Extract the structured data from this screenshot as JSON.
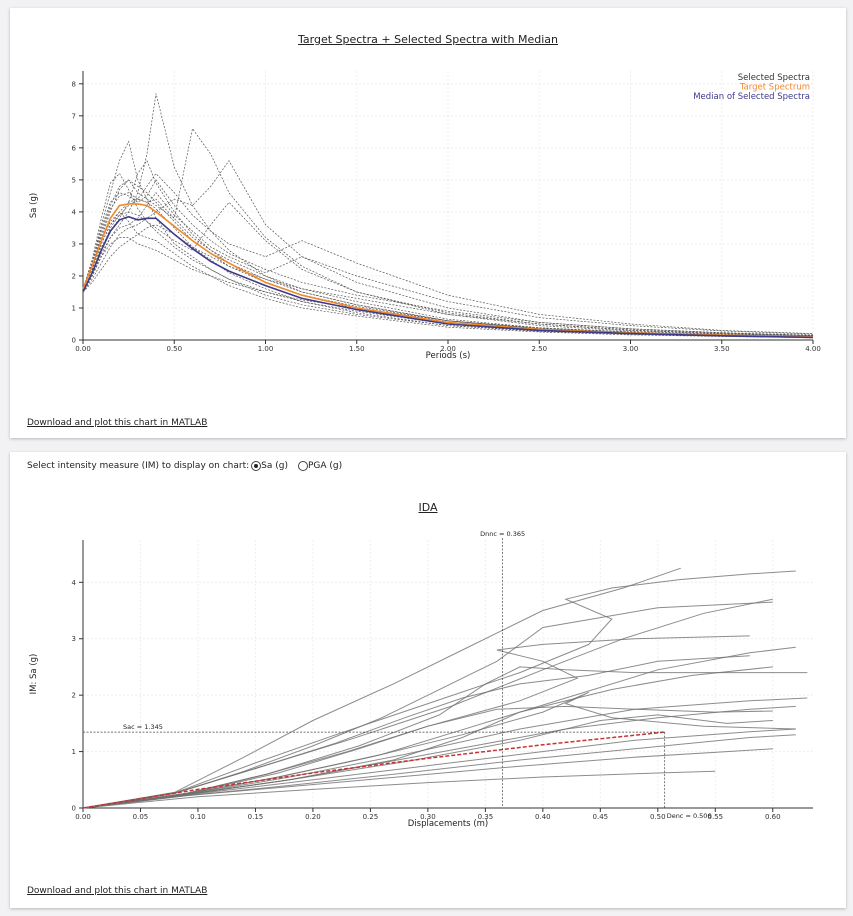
{
  "panel1": {
    "link_label": "Download and plot this chart in MATLAB"
  },
  "panel2": {
    "im_prompt": "Select intensity measure (IM) to display on chart:",
    "im_options": [
      {
        "label": "Sa (g)",
        "selected": true
      },
      {
        "label": "PGA (g)",
        "selected": false
      }
    ],
    "link_label": "Download and plot this chart in MATLAB"
  },
  "chart_data": [
    {
      "type": "line",
      "title": "Target Spectra + Selected Spectra with Median",
      "xlabel": "Periods (s)",
      "ylabel": "Sa (g)",
      "xlim": [
        0,
        4
      ],
      "ylim": [
        0,
        8.4
      ],
      "xticks": [
        "0.00",
        "0.50",
        "1.00",
        "1.50",
        "2.00",
        "2.50",
        "3.00",
        "3.50",
        "4.00"
      ],
      "yticks": [
        "0",
        "1",
        "2",
        "3",
        "4",
        "5",
        "6",
        "7",
        "8"
      ],
      "grid": true,
      "legend_position": "top-right",
      "x": [
        0,
        0.05,
        0.1,
        0.15,
        0.2,
        0.25,
        0.3,
        0.35,
        0.4,
        0.5,
        0.6,
        0.7,
        0.8,
        1.0,
        1.2,
        1.5,
        2.0,
        2.5,
        3.0,
        3.5,
        4.0
      ],
      "series": [
        {
          "name": "Target Spectrum",
          "color": "#f0882a",
          "values": [
            1.6,
            2.3,
            3.1,
            3.8,
            4.2,
            4.25,
            4.25,
            4.2,
            4.0,
            3.55,
            3.1,
            2.7,
            2.4,
            1.8,
            1.4,
            1.0,
            0.55,
            0.33,
            0.22,
            0.15,
            0.1
          ]
        },
        {
          "name": "Median of Selected Spectra",
          "color": "#3d3a8a",
          "values": [
            1.5,
            2.1,
            2.8,
            3.4,
            3.75,
            3.85,
            3.75,
            3.8,
            3.8,
            3.3,
            2.85,
            2.45,
            2.15,
            1.7,
            1.3,
            0.95,
            0.5,
            0.3,
            0.2,
            0.13,
            0.08
          ]
        },
        {
          "name": "Selected Spectra",
          "color": "#555555",
          "dashed": true,
          "records": [
            [
              1.6,
              2.4,
              3.6,
              4.6,
              5.6,
              6.2,
              5.0,
              4.4,
              3.8,
              3.0,
              2.6,
              2.2,
              1.9,
              1.4,
              1.1,
              0.8,
              0.45,
              0.27,
              0.18,
              0.12,
              0.08
            ],
            [
              1.5,
              2.0,
              2.6,
              3.2,
              3.6,
              4.0,
              4.6,
              5.8,
              7.7,
              5.4,
              4.2,
              3.4,
              2.8,
              2.0,
              1.5,
              1.1,
              0.6,
              0.35,
              0.22,
              0.15,
              0.1
            ],
            [
              1.6,
              2.3,
              3.4,
              4.2,
              4.8,
              5.0,
              4.6,
              4.4,
              4.2,
              3.8,
              6.6,
              5.8,
              4.6,
              3.2,
              2.3,
              1.5,
              0.8,
              0.45,
              0.28,
              0.18,
              0.12
            ],
            [
              1.5,
              1.9,
              2.4,
              2.9,
              3.3,
              3.5,
              3.6,
              3.8,
              4.0,
              4.4,
              4.2,
              4.8,
              5.6,
              3.6,
              2.6,
              1.8,
              1.0,
              0.55,
              0.35,
              0.22,
              0.14
            ],
            [
              1.6,
              2.2,
              3.0,
              3.6,
              3.9,
              4.2,
              4.4,
              4.8,
              5.2,
              4.6,
              3.9,
              3.4,
              3.0,
              2.6,
              3.1,
              2.4,
              1.4,
              0.8,
              0.5,
              0.3,
              0.2
            ],
            [
              1.6,
              2.5,
              3.8,
              4.9,
              5.2,
              4.7,
              4.1,
              3.7,
              3.4,
              2.9,
              2.5,
              2.2,
              1.9,
              1.5,
              1.2,
              0.9,
              0.5,
              0.3,
              0.2,
              0.13,
              0.09
            ],
            [
              1.5,
              2.0,
              2.7,
              3.2,
              3.5,
              3.6,
              3.8,
              4.2,
              4.6,
              3.9,
              3.4,
              2.9,
              2.6,
              2.1,
              2.6,
              2.0,
              1.2,
              0.7,
              0.45,
              0.28,
              0.18
            ],
            [
              1.6,
              2.3,
              3.3,
              4.1,
              4.5,
              4.6,
              4.4,
              4.3,
              4.4,
              3.8,
              3.2,
              2.8,
              2.5,
              2.0,
              1.6,
              1.2,
              0.65,
              0.38,
              0.25,
              0.16,
              0.11
            ],
            [
              1.5,
              2.1,
              2.9,
              3.4,
              3.8,
              4.3,
              5.2,
              5.6,
              4.9,
              4.0,
              3.3,
              2.8,
              2.4,
              1.9,
              1.5,
              1.1,
              0.6,
              0.35,
              0.23,
              0.15,
              0.1
            ],
            [
              1.6,
              2.2,
              3.1,
              3.7,
              4.0,
              3.7,
              3.3,
              3.2,
              3.1,
              2.7,
              2.3,
              2.0,
              1.7,
              1.3,
              1.0,
              0.75,
              0.4,
              0.25,
              0.16,
              0.11,
              0.07
            ],
            [
              1.5,
              1.8,
              2.2,
              2.6,
              2.9,
              3.1,
              3.3,
              3.5,
              3.6,
              3.3,
              2.9,
              2.6,
              2.3,
              1.9,
              1.6,
              1.3,
              0.8,
              0.5,
              0.3,
              0.2,
              0.13
            ],
            [
              1.6,
              2.4,
              3.5,
              4.3,
              4.6,
              4.5,
              4.3,
              4.5,
              5.0,
              4.2,
              3.6,
              3.1,
              2.7,
              2.2,
              1.8,
              1.4,
              0.9,
              0.55,
              0.35,
              0.23,
              0.15
            ],
            [
              1.5,
              2.0,
              2.6,
              3.0,
              3.2,
              3.2,
              3.0,
              2.9,
              2.8,
              2.5,
              2.2,
              2.0,
              1.8,
              1.5,
              1.25,
              1.0,
              0.6,
              0.38,
              0.25,
              0.17,
              0.12
            ],
            [
              1.6,
              2.3,
              3.2,
              4.0,
              4.7,
              5.0,
              4.8,
              4.6,
              4.3,
              3.7,
              3.1,
              2.7,
              2.3,
              1.8,
              1.4,
              1.05,
              0.6,
              0.36,
              0.24,
              0.16,
              0.1
            ],
            [
              1.5,
              2.0,
              2.8,
              3.5,
              3.9,
              4.0,
              3.9,
              3.7,
              3.5,
              3.1,
              2.8,
              3.6,
              4.3,
              3.1,
              2.2,
              1.5,
              0.85,
              0.5,
              0.32,
              0.2,
              0.13
            ],
            [
              1.6,
              2.2,
              3.0,
              3.6,
              4.0,
              4.3,
              4.4,
              4.3,
              4.1,
              3.5,
              2.9,
              2.5,
              2.1,
              1.6,
              1.2,
              0.85,
              0.45,
              0.28,
              0.18,
              0.12,
              0.08
            ]
          ]
        }
      ]
    },
    {
      "type": "line",
      "title": "IDA",
      "xlabel": "Displacements (m)",
      "ylabel": "IM: Sa (g)",
      "xlim": [
        0,
        0.635
      ],
      "ylim": [
        0,
        4.75
      ],
      "xticks": [
        "0.00",
        "0.05",
        "0.10",
        "0.15",
        "0.20",
        "0.25",
        "0.30",
        "0.35",
        "0.40",
        "0.45",
        "0.50",
        "0.55",
        "0.60"
      ],
      "yticks": [
        "0",
        "1",
        "2",
        "3",
        "4"
      ],
      "grid": true,
      "annotations": [
        {
          "text": "Dnnc = 0.365",
          "axis": "x",
          "value": 0.365
        },
        {
          "text": "Denc = 0.506",
          "axis": "x",
          "value": 0.506
        },
        {
          "text": "Sac = 1.345",
          "axis": "y",
          "value": 1.345
        }
      ],
      "median": {
        "color": "#c83232",
        "dashed": true,
        "x": [
          0,
          0.1,
          0.2,
          0.3,
          0.4,
          0.506
        ],
        "y": [
          0,
          0.33,
          0.62,
          0.88,
          1.12,
          1.345
        ]
      },
      "curves": [
        {
          "x": [
            0,
            0.08,
            0.14,
            0.2,
            0.27,
            0.33,
            0.4,
            0.47,
            0.52
          ],
          "y": [
            0,
            0.28,
            0.9,
            1.55,
            2.2,
            2.8,
            3.5,
            3.9,
            4.25
          ]
        },
        {
          "x": [
            0,
            0.08,
            0.15,
            0.22,
            0.3,
            0.38,
            0.44,
            0.46,
            0.42,
            0.46,
            0.52,
            0.58,
            0.62
          ],
          "y": [
            0,
            0.27,
            0.8,
            1.3,
            1.85,
            2.4,
            2.9,
            3.35,
            3.7,
            3.9,
            4.05,
            4.15,
            4.2
          ]
        },
        {
          "x": [
            0,
            0.08,
            0.15,
            0.23,
            0.32,
            0.4,
            0.47,
            0.54,
            0.6
          ],
          "y": [
            0,
            0.27,
            0.7,
            1.2,
            1.8,
            2.45,
            3.0,
            3.45,
            3.7
          ]
        },
        {
          "x": [
            0,
            0.08,
            0.14,
            0.2,
            0.26,
            0.3,
            0.34,
            0.36,
            0.4,
            0.5,
            0.6
          ],
          "y": [
            0,
            0.26,
            0.65,
            1.1,
            1.6,
            2.0,
            2.4,
            2.6,
            3.2,
            3.55,
            3.65
          ]
        },
        {
          "x": [
            0,
            0.09,
            0.16,
            0.23,
            0.3,
            0.38,
            0.43,
            0.4,
            0.36,
            0.4,
            0.48,
            0.58
          ],
          "y": [
            0,
            0.26,
            0.6,
            1.0,
            1.45,
            1.9,
            2.3,
            2.6,
            2.8,
            2.9,
            3.0,
            3.05
          ]
        },
        {
          "x": [
            0,
            0.09,
            0.17,
            0.26,
            0.34,
            0.42,
            0.5,
            0.58,
            0.62
          ],
          "y": [
            0,
            0.25,
            0.55,
            0.95,
            1.45,
            1.95,
            2.45,
            2.75,
            2.85
          ]
        },
        {
          "x": [
            0,
            0.09,
            0.17,
            0.25,
            0.33,
            0.4,
            0.44,
            0.42,
            0.46,
            0.54,
            0.62
          ],
          "y": [
            0,
            0.25,
            0.55,
            0.9,
            1.3,
            1.7,
            2.05,
            1.85,
            1.6,
            1.45,
            1.4
          ]
        },
        {
          "x": [
            0,
            0.09,
            0.16,
            0.24,
            0.31,
            0.35,
            0.38,
            0.42,
            0.48,
            0.56,
            0.63
          ],
          "y": [
            0,
            0.26,
            0.6,
            1.1,
            1.65,
            2.2,
            2.5,
            2.45,
            2.4,
            2.4,
            2.4
          ]
        },
        {
          "x": [
            0,
            0.09,
            0.18,
            0.27,
            0.33,
            0.38,
            0.46,
            0.53,
            0.6
          ],
          "y": [
            0,
            0.24,
            0.5,
            0.85,
            1.25,
            1.7,
            2.1,
            2.35,
            2.5
          ]
        },
        {
          "x": [
            0,
            0.09,
            0.18,
            0.28,
            0.38,
            0.45,
            0.5,
            0.56,
            0.6
          ],
          "y": [
            0,
            0.24,
            0.5,
            0.82,
            1.2,
            1.55,
            1.65,
            1.5,
            1.55
          ]
        },
        {
          "x": [
            0,
            0.09,
            0.18,
            0.28,
            0.38,
            0.48,
            0.58,
            0.62
          ],
          "y": [
            0,
            0.23,
            0.45,
            0.7,
            0.95,
            1.2,
            1.35,
            1.4
          ]
        },
        {
          "x": [
            0,
            0.09,
            0.18,
            0.28,
            0.38,
            0.48,
            0.58,
            0.62
          ],
          "y": [
            0,
            0.22,
            0.4,
            0.62,
            0.85,
            1.05,
            1.25,
            1.3
          ]
        },
        {
          "x": [
            0,
            0.09,
            0.18,
            0.28,
            0.38,
            0.48,
            0.56,
            0.6
          ],
          "y": [
            0,
            0.22,
            0.38,
            0.56,
            0.74,
            0.9,
            1.0,
            1.05
          ]
        },
        {
          "x": [
            0,
            0.1,
            0.2,
            0.3,
            0.4,
            0.5,
            0.55
          ],
          "y": [
            0,
            0.2,
            0.33,
            0.45,
            0.55,
            0.62,
            0.65
          ]
        },
        {
          "x": [
            0,
            0.09,
            0.18,
            0.28,
            0.38,
            0.48,
            0.58,
            0.63
          ],
          "y": [
            0,
            0.24,
            0.55,
            0.95,
            1.4,
            1.75,
            1.9,
            1.95
          ]
        },
        {
          "x": [
            0,
            0.09,
            0.17,
            0.24,
            0.3,
            0.36,
            0.42,
            0.48,
            0.55,
            0.6
          ],
          "y": [
            0,
            0.25,
            0.62,
            1.05,
            1.45,
            1.75,
            1.8,
            1.75,
            1.7,
            1.72
          ]
        },
        {
          "x": [
            0,
            0.08,
            0.15,
            0.22,
            0.28,
            0.33,
            0.38,
            0.44,
            0.5,
            0.58
          ],
          "y": [
            0,
            0.26,
            0.7,
            1.15,
            1.6,
            1.95,
            2.2,
            2.35,
            2.6,
            2.7
          ]
        },
        {
          "x": [
            0,
            0.09,
            0.18,
            0.26,
            0.34,
            0.42,
            0.5,
            0.58,
            0.62
          ],
          "y": [
            0,
            0.24,
            0.5,
            0.8,
            1.1,
            1.4,
            1.6,
            1.75,
            1.8
          ]
        }
      ]
    }
  ]
}
